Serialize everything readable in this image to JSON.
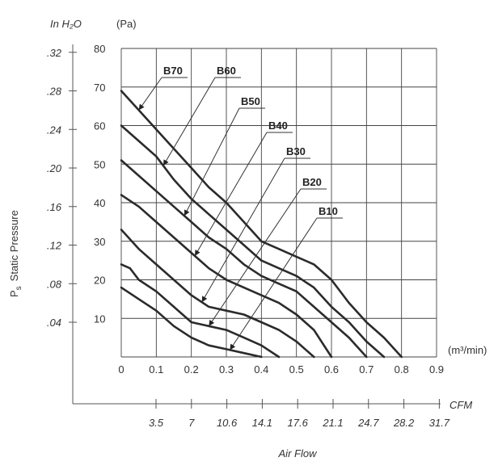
{
  "chart_data": {
    "type": "line",
    "xlabel": "Air Flow",
    "x_units_label": "(m³/min)",
    "y_units_label": "(Pa)",
    "y_side_label": "Static Pressure",
    "y_side_symbol": "P",
    "y_side_subscript": "s",
    "alt_y_label": "In H₂O",
    "alt_x_label": "CFM",
    "x_ticks": [
      "0",
      "0.1",
      "0.2",
      "0.3",
      "0.4",
      "0.5",
      "0.6",
      "0.7",
      "0.8",
      "0.9"
    ],
    "y_ticks": [
      "10",
      "20",
      "30",
      "40",
      "50",
      "60",
      "70",
      "80"
    ],
    "alt_y_ticks": [
      ".04",
      ".08",
      ".12",
      ".16",
      ".20",
      ".24",
      ".28",
      ".32"
    ],
    "alt_x_ticks": [
      "3.5",
      "7",
      "10.6",
      "14.1",
      "17.6",
      "21.1",
      "24.7",
      "28.2",
      "31.7"
    ],
    "xlim": [
      0,
      0.9
    ],
    "ylim": [
      0,
      80
    ],
    "grid": true,
    "series": [
      {
        "name": "B70",
        "x": [
          0,
          0.05,
          0.1,
          0.15,
          0.2,
          0.25,
          0.3,
          0.35,
          0.4,
          0.45,
          0.5,
          0.55,
          0.6,
          0.65,
          0.7,
          0.75,
          0.8
        ],
        "y": [
          69,
          64,
          59,
          54,
          49,
          44,
          40,
          35,
          30,
          28,
          26,
          24,
          20,
          14,
          9,
          5,
          0
        ]
      },
      {
        "name": "B60",
        "x": [
          0,
          0.05,
          0.1,
          0.15,
          0.2,
          0.25,
          0.3,
          0.35,
          0.4,
          0.45,
          0.5,
          0.55,
          0.6,
          0.65,
          0.7,
          0.75
        ],
        "y": [
          60,
          56,
          52,
          46,
          41,
          37,
          33,
          29,
          25,
          23,
          21,
          18,
          13,
          9,
          4,
          0
        ]
      },
      {
        "name": "B50",
        "x": [
          0,
          0.05,
          0.1,
          0.15,
          0.2,
          0.25,
          0.3,
          0.35,
          0.4,
          0.45,
          0.5,
          0.55,
          0.6,
          0.65,
          0.7
        ],
        "y": [
          51,
          47,
          43,
          39,
          35,
          31,
          28,
          24,
          21,
          19,
          17,
          13,
          9,
          5,
          0
        ]
      },
      {
        "name": "B40",
        "x": [
          0,
          0.05,
          0.1,
          0.15,
          0.2,
          0.25,
          0.3,
          0.35,
          0.4,
          0.45,
          0.5,
          0.55,
          0.6
        ],
        "y": [
          42,
          39,
          35,
          31,
          27,
          23,
          20,
          18,
          16,
          14,
          11,
          7,
          0
        ]
      },
      {
        "name": "B30",
        "x": [
          0,
          0.05,
          0.1,
          0.15,
          0.2,
          0.25,
          0.3,
          0.35,
          0.4,
          0.45,
          0.5,
          0.55
        ],
        "y": [
          33,
          28,
          24,
          20,
          16,
          13,
          12,
          11,
          9,
          7,
          4,
          0
        ]
      },
      {
        "name": "B20",
        "x": [
          0,
          0.025,
          0.05,
          0.1,
          0.15,
          0.2,
          0.25,
          0.3,
          0.35,
          0.4,
          0.45
        ],
        "y": [
          24,
          23,
          20,
          17,
          13,
          9,
          8,
          7,
          5,
          3,
          0
        ]
      },
      {
        "name": "B10",
        "x": [
          0,
          0.05,
          0.1,
          0.15,
          0.2,
          0.25,
          0.3,
          0.35,
          0.4
        ],
        "y": [
          18,
          15,
          12,
          8,
          5,
          3,
          2,
          1,
          0
        ]
      }
    ],
    "annotations": [
      {
        "text": "B70",
        "target_series": "B70",
        "target_x": 0.05
      },
      {
        "text": "B60",
        "target_series": "B60",
        "target_x": 0.12
      },
      {
        "text": "B50",
        "target_series": "B50",
        "target_x": 0.18
      },
      {
        "text": "B40",
        "target_series": "B40",
        "target_x": 0.21
      },
      {
        "text": "B30",
        "target_series": "B30",
        "target_x": 0.23
      },
      {
        "text": "B20",
        "target_series": "B20",
        "target_x": 0.25
      },
      {
        "text": "B10",
        "target_series": "B10",
        "target_x": 0.31
      }
    ]
  }
}
